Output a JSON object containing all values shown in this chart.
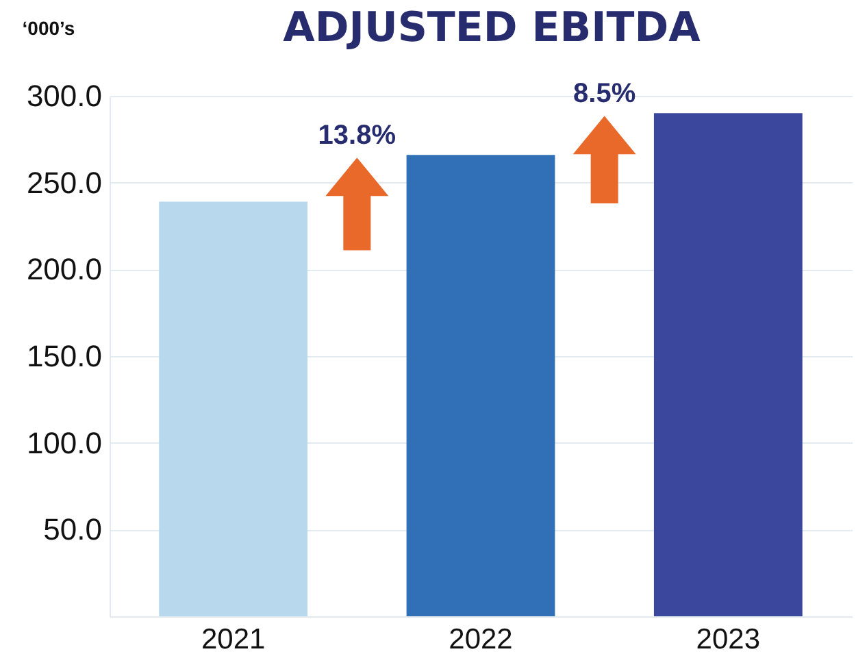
{
  "chart_data": {
    "type": "bar",
    "title": "ADJUSTED EBITDA",
    "ylabel": "‘000’s",
    "categories": [
      "2021",
      "2022",
      "2023"
    ],
    "values": [
      239,
      266,
      290
    ],
    "colors": [
      "#b8d8ee",
      "#3170b7",
      "#3b479c"
    ],
    "ylim": [
      0,
      300
    ],
    "yticks": [
      {
        "value": 50,
        "label": "50.0"
      },
      {
        "value": 100,
        "label": "100.0"
      },
      {
        "value": 150,
        "label": "150.0"
      },
      {
        "value": 200,
        "label": "200.0"
      },
      {
        "value": 250,
        "label": "250.0"
      },
      {
        "value": 300,
        "label": "300.0"
      }
    ],
    "grid": "y",
    "annotations": [
      "13.8%",
      "8.5%"
    ]
  }
}
